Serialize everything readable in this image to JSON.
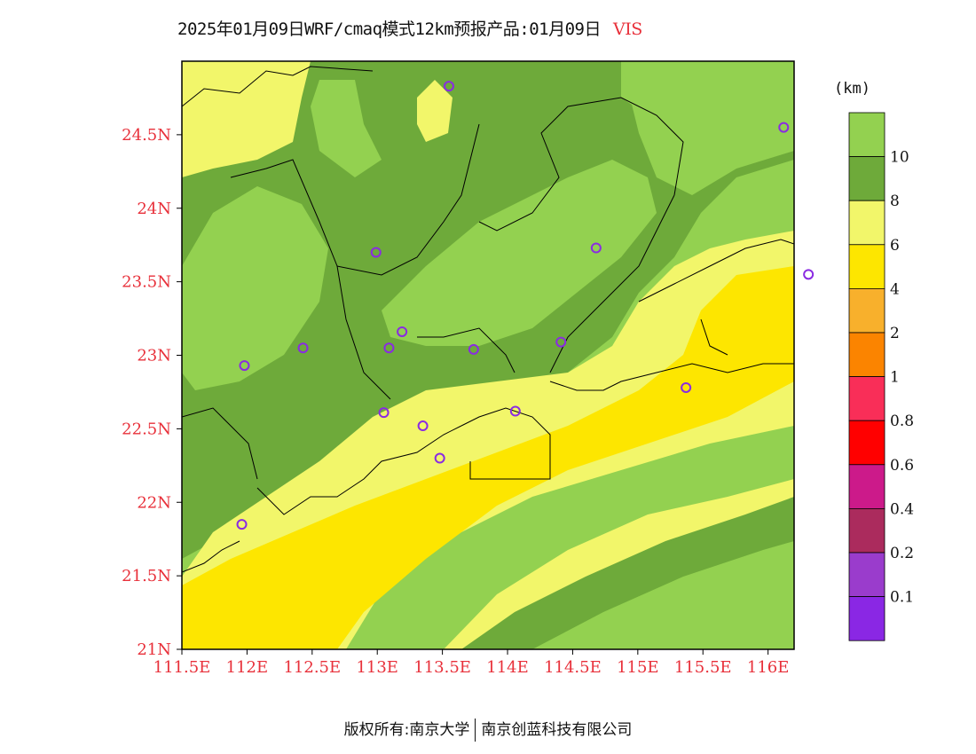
{
  "header": {
    "title": "2025年01月09日WRF/cmaq模式12km预报产品:01月09日",
    "variable": "VIS"
  },
  "legend": {
    "unit": "(km)",
    "levels": [
      {
        "label": "",
        "color": "#93d150"
      },
      {
        "label": "10",
        "color": "#6eaa3a"
      },
      {
        "label": "8",
        "color": "#f2f66a"
      },
      {
        "label": "6",
        "color": "#fde600"
      },
      {
        "label": "4",
        "color": "#f8b02c"
      },
      {
        "label": "2",
        "color": "#fb8400"
      },
      {
        "label": "1",
        "color": "#f92e58"
      },
      {
        "label": "0.8",
        "color": "#ff0000"
      },
      {
        "label": "0.6",
        "color": "#cc1a8a"
      },
      {
        "label": "0.4",
        "color": "#ab2b5d"
      },
      {
        "label": "0.2",
        "color": "#9a3ccc"
      },
      {
        "label": "0.1",
        "color": "#8a27e4"
      }
    ]
  },
  "axes": {
    "x_ticks": [
      "111.5E",
      "112E",
      "112.5E",
      "113E",
      "113.5E",
      "114E",
      "114.5E",
      "115E",
      "115.5E",
      "116E"
    ],
    "y_ticks": [
      "24.5N",
      "24N",
      "23.5N",
      "23N",
      "22.5N",
      "22N",
      "21.5N",
      "21N"
    ],
    "lon_range": [
      111.5,
      116.2
    ],
    "lat_range": [
      21.0,
      25.0
    ]
  },
  "stations": [
    {
      "lon": 113.55,
      "lat": 24.83
    },
    {
      "lon": 116.12,
      "lat": 24.55
    },
    {
      "lon": 112.99,
      "lat": 23.7
    },
    {
      "lon": 114.68,
      "lat": 23.73
    },
    {
      "lon": 116.31,
      "lat": 23.55
    },
    {
      "lon": 112.43,
      "lat": 23.05
    },
    {
      "lon": 111.98,
      "lat": 22.93
    },
    {
      "lon": 113.09,
      "lat": 23.05
    },
    {
      "lon": 113.19,
      "lat": 23.16
    },
    {
      "lon": 113.74,
      "lat": 23.04
    },
    {
      "lon": 114.41,
      "lat": 23.09
    },
    {
      "lon": 115.37,
      "lat": 22.78
    },
    {
      "lon": 113.05,
      "lat": 22.61
    },
    {
      "lon": 113.35,
      "lat": 22.52
    },
    {
      "lon": 114.06,
      "lat": 22.62
    },
    {
      "lon": 113.48,
      "lat": 22.3
    },
    {
      "lon": 111.96,
      "lat": 21.85
    }
  ],
  "colors": {
    "station": "#8a2be2",
    "axis_text": "#e8303a"
  },
  "footer": {
    "left": "版权所有:南京大学",
    "right": "南京创蓝科技有限公司"
  }
}
